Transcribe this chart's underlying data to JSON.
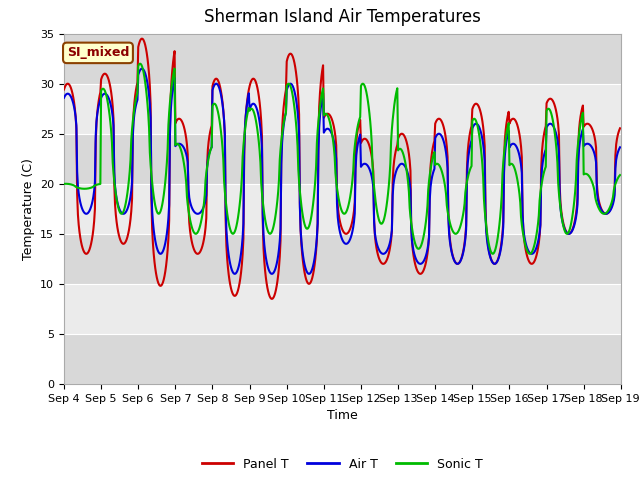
{
  "title": "Sherman Island Air Temperatures",
  "xlabel": "Time",
  "ylabel": "Temperature (C)",
  "ylim": [
    0,
    35
  ],
  "yticks": [
    0,
    5,
    10,
    15,
    20,
    25,
    30,
    35
  ],
  "legend_label": "SI_mixed",
  "series_labels": [
    "Panel T",
    "Air T",
    "Sonic T"
  ],
  "series_colors": [
    "#cc0000",
    "#0000dd",
    "#00bb00"
  ],
  "line_width": 1.5,
  "bg_color": "#ffffff",
  "plot_bg_color": "#d8d8d8",
  "band_light": "#ebebeb",
  "band_dark": "#d8d8d8",
  "title_fontsize": 12,
  "axis_fontsize": 9,
  "tick_fontsize": 8,
  "n_days": 15,
  "pts_per_day": 48,
  "x_start_day": 4,
  "x_end_day": 19,
  "xtick_days": [
    4,
    5,
    6,
    7,
    8,
    9,
    10,
    11,
    12,
    13,
    14,
    15,
    16,
    17,
    18,
    19
  ],
  "panel_peaks": [
    30,
    31,
    34.5,
    26.5,
    30.5,
    30.5,
    33,
    27,
    24.5,
    25,
    26.5,
    28,
    26.5,
    28.5,
    26
  ],
  "panel_mins": [
    13,
    14,
    9.8,
    13,
    8.8,
    8.5,
    10,
    15,
    12,
    11,
    12,
    12,
    12,
    15,
    17
  ],
  "air_peaks": [
    29,
    29,
    31.5,
    24,
    30,
    28,
    30,
    25.5,
    22,
    22,
    25,
    26,
    24,
    26,
    24
  ],
  "air_mins": [
    17,
    17,
    13,
    17,
    11,
    11,
    11,
    14,
    13,
    12,
    12,
    12,
    13,
    15,
    17
  ],
  "sonic_peaks": [
    20,
    29.5,
    32,
    24,
    28,
    27.5,
    30,
    27,
    30,
    23.5,
    22,
    26.5,
    22,
    27.5,
    21
  ],
  "sonic_mins": [
    19.5,
    17,
    17,
    15,
    15,
    15,
    15.5,
    17,
    16,
    13.5,
    15,
    13,
    13,
    15,
    17
  ],
  "panel_phase": 0.35,
  "air_phase": 0.35,
  "sonic_phase": 0.3,
  "spike_sharpness": 3.0
}
